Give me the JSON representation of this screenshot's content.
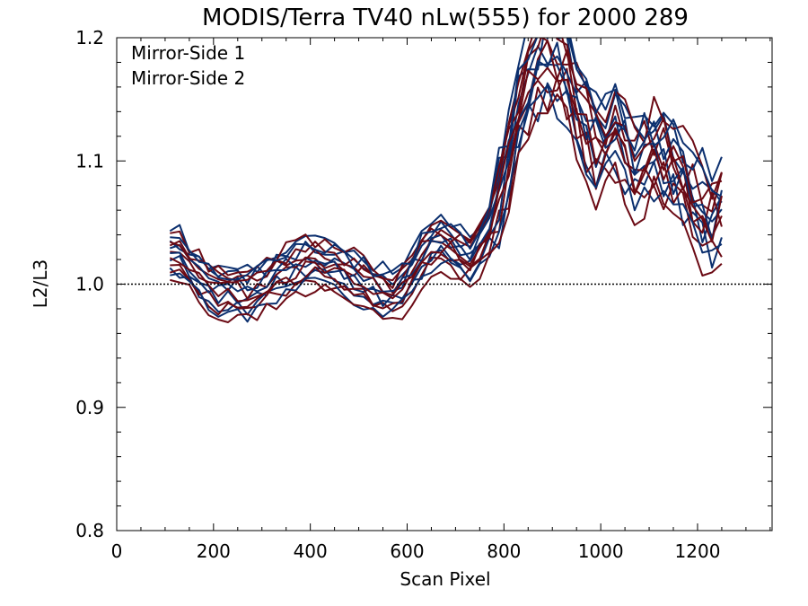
{
  "chart_data": {
    "type": "line",
    "title": "MODIS/Terra TV40 nLw(555) for 2000 289",
    "xlabel": "Scan Pixel",
    "ylabel": "L2/L3",
    "xlim": [
      0,
      1354
    ],
    "ylim": [
      0.8,
      1.2
    ],
    "xticks": [
      "0",
      "200",
      "400",
      "600",
      "800",
      "1000",
      "1200"
    ],
    "yticks": [
      "0.8",
      "0.9",
      "1.0",
      "1.1",
      "1.2"
    ],
    "reference_line": 1.0,
    "legend_position": "top-left",
    "x": [
      110,
      130,
      150,
      170,
      190,
      210,
      230,
      250,
      270,
      290,
      310,
      330,
      350,
      370,
      390,
      410,
      430,
      450,
      470,
      490,
      510,
      530,
      550,
      570,
      590,
      610,
      630,
      650,
      670,
      690,
      710,
      730,
      750,
      770,
      790,
      810,
      830,
      850,
      870,
      890,
      910,
      930,
      950,
      970,
      990,
      1010,
      1030,
      1050,
      1070,
      1090,
      1110,
      1130,
      1150,
      1170,
      1190,
      1210,
      1230,
      1250
    ],
    "base_profile": [
      1.03,
      1.022,
      1.013,
      1.005,
      0.998,
      0.994,
      0.993,
      0.995,
      0.992,
      0.996,
      1.001,
      1.006,
      1.01,
      1.013,
      1.016,
      1.017,
      1.015,
      1.012,
      1.009,
      1.005,
      1.001,
      0.996,
      0.993,
      0.991,
      0.998,
      1.008,
      1.02,
      1.03,
      1.034,
      1.03,
      1.024,
      1.02,
      1.03,
      1.045,
      1.065,
      1.1,
      1.135,
      1.16,
      1.168,
      1.18,
      1.178,
      1.17,
      1.15,
      1.125,
      1.11,
      1.118,
      1.125,
      1.11,
      1.095,
      1.102,
      1.105,
      1.098,
      1.09,
      1.08,
      1.065,
      1.055,
      1.05,
      1.06
    ],
    "series": [
      {
        "name": "Mirror-Side 1",
        "color": "#0b2f6e",
        "offsets": [
          0.012,
          -0.01,
          0.02,
          -0.004,
          0.006,
          -0.016,
          0.002,
          0.015
        ],
        "seed": 11
      },
      {
        "name": "Mirror-Side 2",
        "color": "#6b0a14",
        "offsets": [
          0.008,
          -0.014,
          0.018,
          -0.008,
          0.003,
          -0.02,
          0.011,
          -0.002
        ],
        "seed": 29
      }
    ]
  }
}
